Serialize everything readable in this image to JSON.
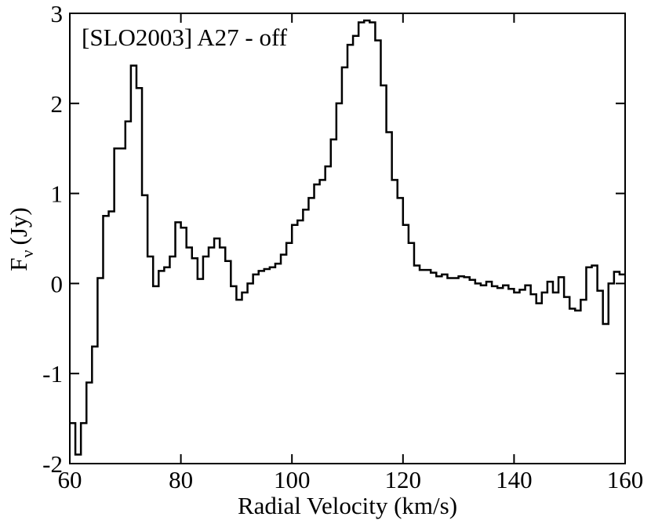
{
  "chart_data": {
    "type": "step",
    "annotation": "[SLO2003] A27 - off",
    "xlabel": "Radial Velocity (km/s)",
    "ylabel": {
      "main": "F",
      "sub": "ν",
      "unit": "(Jy)"
    },
    "color": "#000000",
    "xlim": [
      60,
      160
    ],
    "xticks": [
      60,
      80,
      100,
      120,
      140,
      160
    ],
    "ylim": [
      -2,
      3
    ],
    "yticks": [
      -2,
      -1,
      0,
      1,
      2,
      3
    ],
    "x": [
      60,
      61,
      62,
      63,
      64,
      65,
      66,
      67,
      68,
      69,
      70,
      71,
      72,
      73,
      74,
      75,
      76,
      77,
      78,
      79,
      80,
      81,
      82,
      83,
      84,
      85,
      86,
      87,
      88,
      89,
      90,
      91,
      92,
      93,
      94,
      95,
      96,
      97,
      98,
      99,
      100,
      101,
      102,
      103,
      104,
      105,
      106,
      107,
      108,
      109,
      110,
      111,
      112,
      113,
      114,
      115,
      116,
      117,
      118,
      119,
      120,
      121,
      122,
      123,
      124,
      125,
      126,
      127,
      128,
      129,
      130,
      131,
      132,
      133,
      134,
      135,
      136,
      137,
      138,
      139,
      140,
      141,
      142,
      143,
      144,
      145,
      146,
      147,
      148,
      149,
      150,
      151,
      152,
      153,
      154,
      155,
      156,
      157,
      158,
      159
    ],
    "values": [
      -1.55,
      -1.9,
      -1.55,
      -1.1,
      -0.7,
      0.06,
      0.75,
      0.8,
      1.5,
      1.5,
      1.8,
      2.42,
      2.17,
      0.98,
      0.3,
      -0.03,
      0.14,
      0.18,
      0.3,
      0.68,
      0.62,
      0.4,
      0.28,
      0.05,
      0.3,
      0.4,
      0.5,
      0.4,
      0.25,
      -0.03,
      -0.18,
      -0.1,
      0.0,
      0.1,
      0.14,
      0.16,
      0.18,
      0.22,
      0.32,
      0.45,
      0.65,
      0.7,
      0.82,
      0.95,
      1.1,
      1.15,
      1.3,
      1.6,
      2.0,
      2.4,
      2.65,
      2.75,
      2.9,
      2.92,
      2.9,
      2.7,
      2.2,
      1.68,
      1.15,
      0.95,
      0.65,
      0.45,
      0.2,
      0.15,
      0.15,
      0.12,
      0.08,
      0.1,
      0.06,
      0.06,
      0.08,
      0.07,
      0.04,
      0.0,
      -0.02,
      0.02,
      -0.03,
      -0.05,
      -0.02,
      -0.06,
      -0.1,
      -0.07,
      -0.02,
      -0.12,
      -0.22,
      -0.1,
      0.02,
      -0.1,
      0.07,
      -0.15,
      -0.28,
      -0.3,
      -0.18,
      0.18,
      0.2,
      -0.08,
      -0.45,
      0.0,
      0.13,
      0.1
    ]
  }
}
